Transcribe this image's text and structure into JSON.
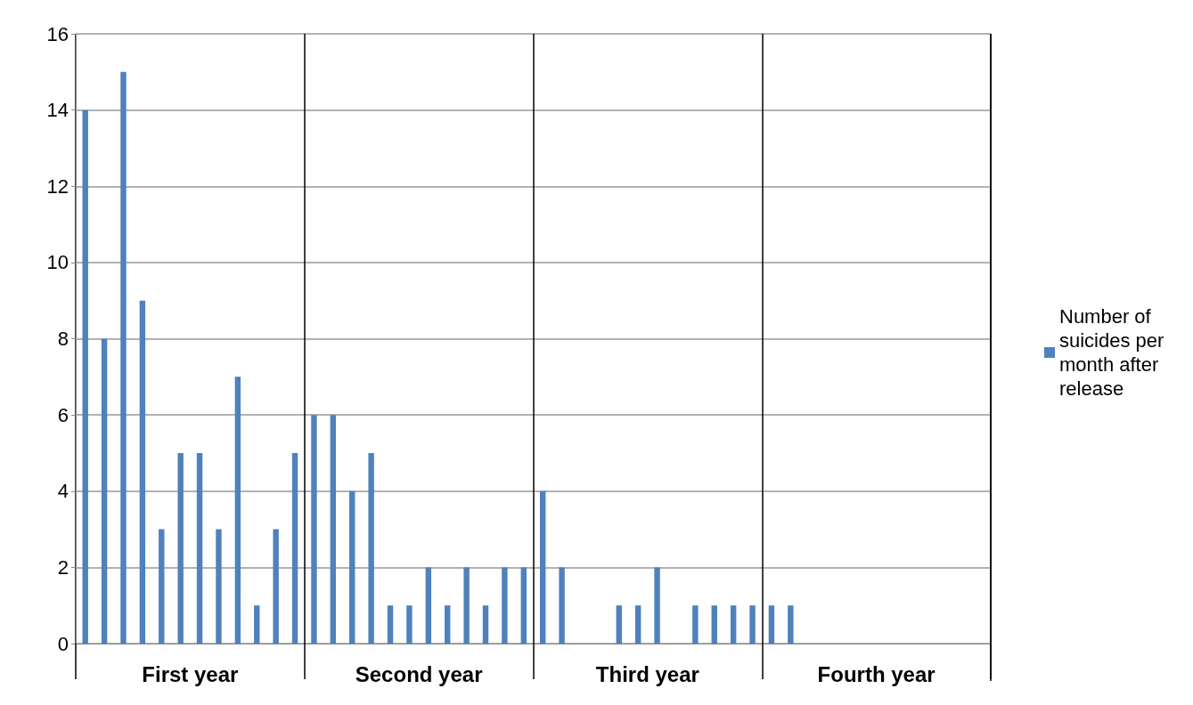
{
  "chart_data": {
    "type": "bar",
    "categories": [
      null,
      null,
      null,
      null,
      null,
      null,
      null,
      null,
      null,
      null,
      null,
      null,
      null,
      null,
      null,
      null,
      null,
      null,
      null,
      null,
      null,
      null,
      null,
      null,
      null,
      null,
      null,
      null,
      null,
      null,
      null,
      null,
      null,
      null,
      null,
      null,
      null,
      null,
      null,
      null,
      null,
      null,
      null,
      null,
      null,
      null,
      null,
      null
    ],
    "series": [
      {
        "name": "Number of suicides per month after release",
        "color": "#4f81bd",
        "values": [
          14,
          8,
          15,
          9,
          3,
          5,
          5,
          3,
          7,
          1,
          3,
          5,
          6,
          6,
          4,
          5,
          1,
          1,
          2,
          1,
          2,
          1,
          2,
          2,
          4,
          2,
          0,
          0,
          1,
          1,
          2,
          0,
          1,
          1,
          1,
          1,
          1,
          1,
          0,
          0,
          0,
          0,
          0,
          0,
          0,
          0,
          0,
          0
        ]
      }
    ],
    "annotations": [
      "First year",
      "Second year",
      "Third year",
      "Fourth year"
    ],
    "ylim": [
      0,
      16
    ],
    "yticks": [
      0,
      2,
      4,
      6,
      8,
      10,
      12,
      14,
      16
    ],
    "grid": "y",
    "legend": "right"
  }
}
